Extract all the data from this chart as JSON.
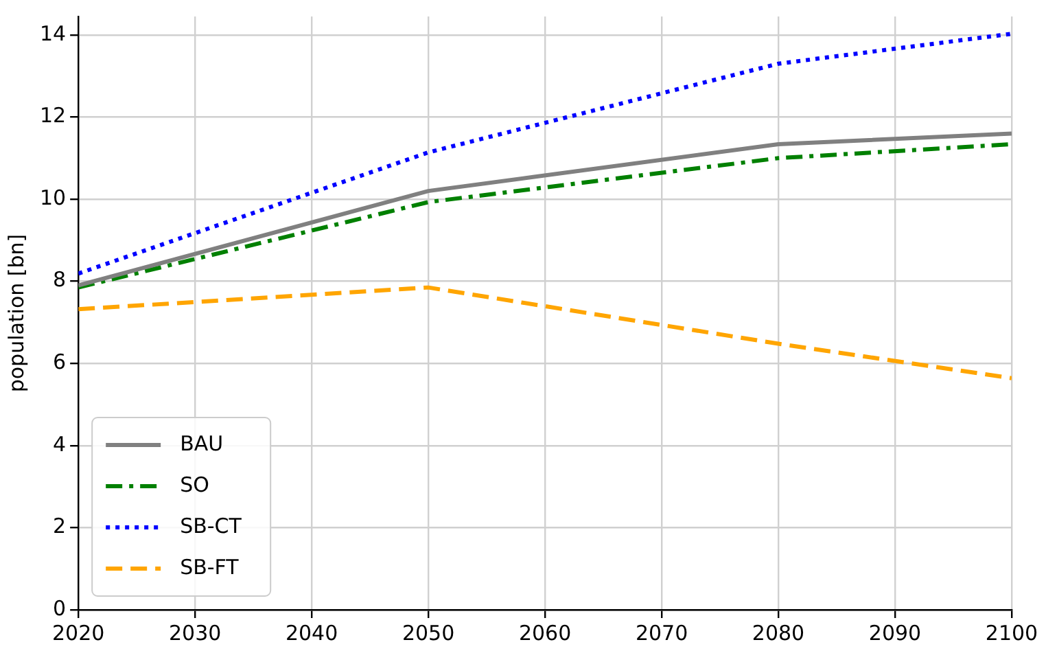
{
  "chart_data": {
    "type": "line",
    "ylabel": "population [bn]",
    "x": [
      2020,
      2050,
      2080,
      2100
    ],
    "series": [
      {
        "name": "BAU",
        "color": "#808080",
        "line_style": "solid",
        "values": [
          7.9,
          10.2,
          11.34,
          11.6
        ]
      },
      {
        "name": "SO",
        "color": "#008000",
        "line_style": "dashdot",
        "values": [
          7.85,
          9.93,
          11.0,
          11.34
        ]
      },
      {
        "name": "SB-CT",
        "color": "#0000ff",
        "line_style": "dotted",
        "values": [
          8.19,
          11.14,
          13.3,
          14.03
        ]
      },
      {
        "name": "SB-FT",
        "color": "#ffa500",
        "line_style": "dashed",
        "values": [
          7.32,
          7.85,
          6.48,
          5.64
        ]
      }
    ],
    "xlim": [
      2020,
      2100
    ],
    "xticks": [
      2020,
      2030,
      2040,
      2050,
      2060,
      2070,
      2080,
      2090,
      2100
    ],
    "ylim": [
      0,
      14.45
    ],
    "yticks": [
      0,
      2,
      4,
      6,
      8,
      10,
      12,
      14
    ],
    "grid": true,
    "legend": "bottom left",
    "marker": "none"
  }
}
